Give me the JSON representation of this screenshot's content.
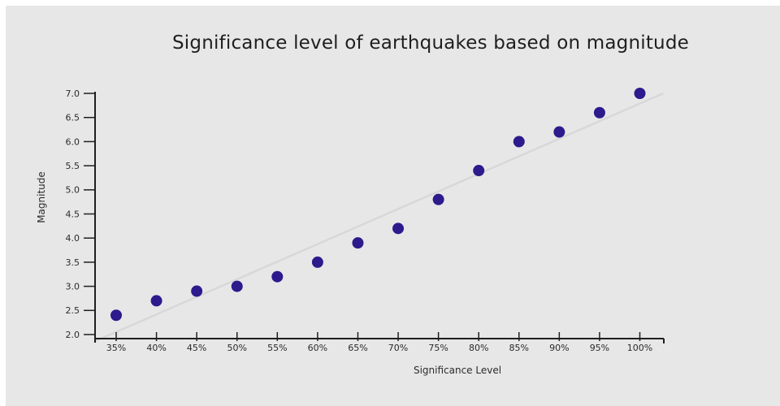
{
  "page": {
    "background": "#ffffff",
    "canvas_background": "#e8e7e7"
  },
  "chart_data": {
    "type": "scatter",
    "title": "Significance level of earthquakes based on magnitude",
    "xlabel": "Significance Level",
    "ylabel": "Magnitude",
    "x": [
      35,
      40,
      45,
      50,
      55,
      60,
      65,
      70,
      75,
      80,
      85,
      90,
      95,
      100
    ],
    "y": [
      2.4,
      2.7,
      2.9,
      3.0,
      3.2,
      3.5,
      3.9,
      4.2,
      4.8,
      5.4,
      6.0,
      6.2,
      6.6,
      7.0
    ],
    "x_tick_values": [
      35,
      40,
      45,
      50,
      55,
      60,
      65,
      70,
      75,
      80,
      85,
      90,
      95,
      100
    ],
    "x_tick_labels": [
      "35%",
      "40%",
      "45%",
      "50%",
      "55%",
      "60%",
      "65%",
      "70%",
      "75%",
      "80%",
      "85%",
      "90%",
      "95%",
      "100%"
    ],
    "y_tick_values": [
      2.0,
      2.5,
      3.0,
      3.5,
      4.0,
      4.5,
      5.0,
      5.5,
      6.0,
      6.5,
      7.0
    ],
    "y_tick_labels": [
      "2.0",
      "2.5",
      "3.0",
      "3.5",
      "4.0",
      "4.5",
      "5.0",
      "5.5",
      "6.0",
      "6.5",
      "7.0"
    ],
    "xlim": [
      32.3,
      103
    ],
    "ylim": [
      1.9,
      7.05
    ],
    "grid": false,
    "legend": false,
    "point_color": "#2d1a8c",
    "axis_color": "#1f1f1f",
    "trendline": {
      "x1": 32.2,
      "y1": 1.85,
      "x2": 102.9,
      "y2": 7.0,
      "color": "#d8d8d8"
    }
  }
}
